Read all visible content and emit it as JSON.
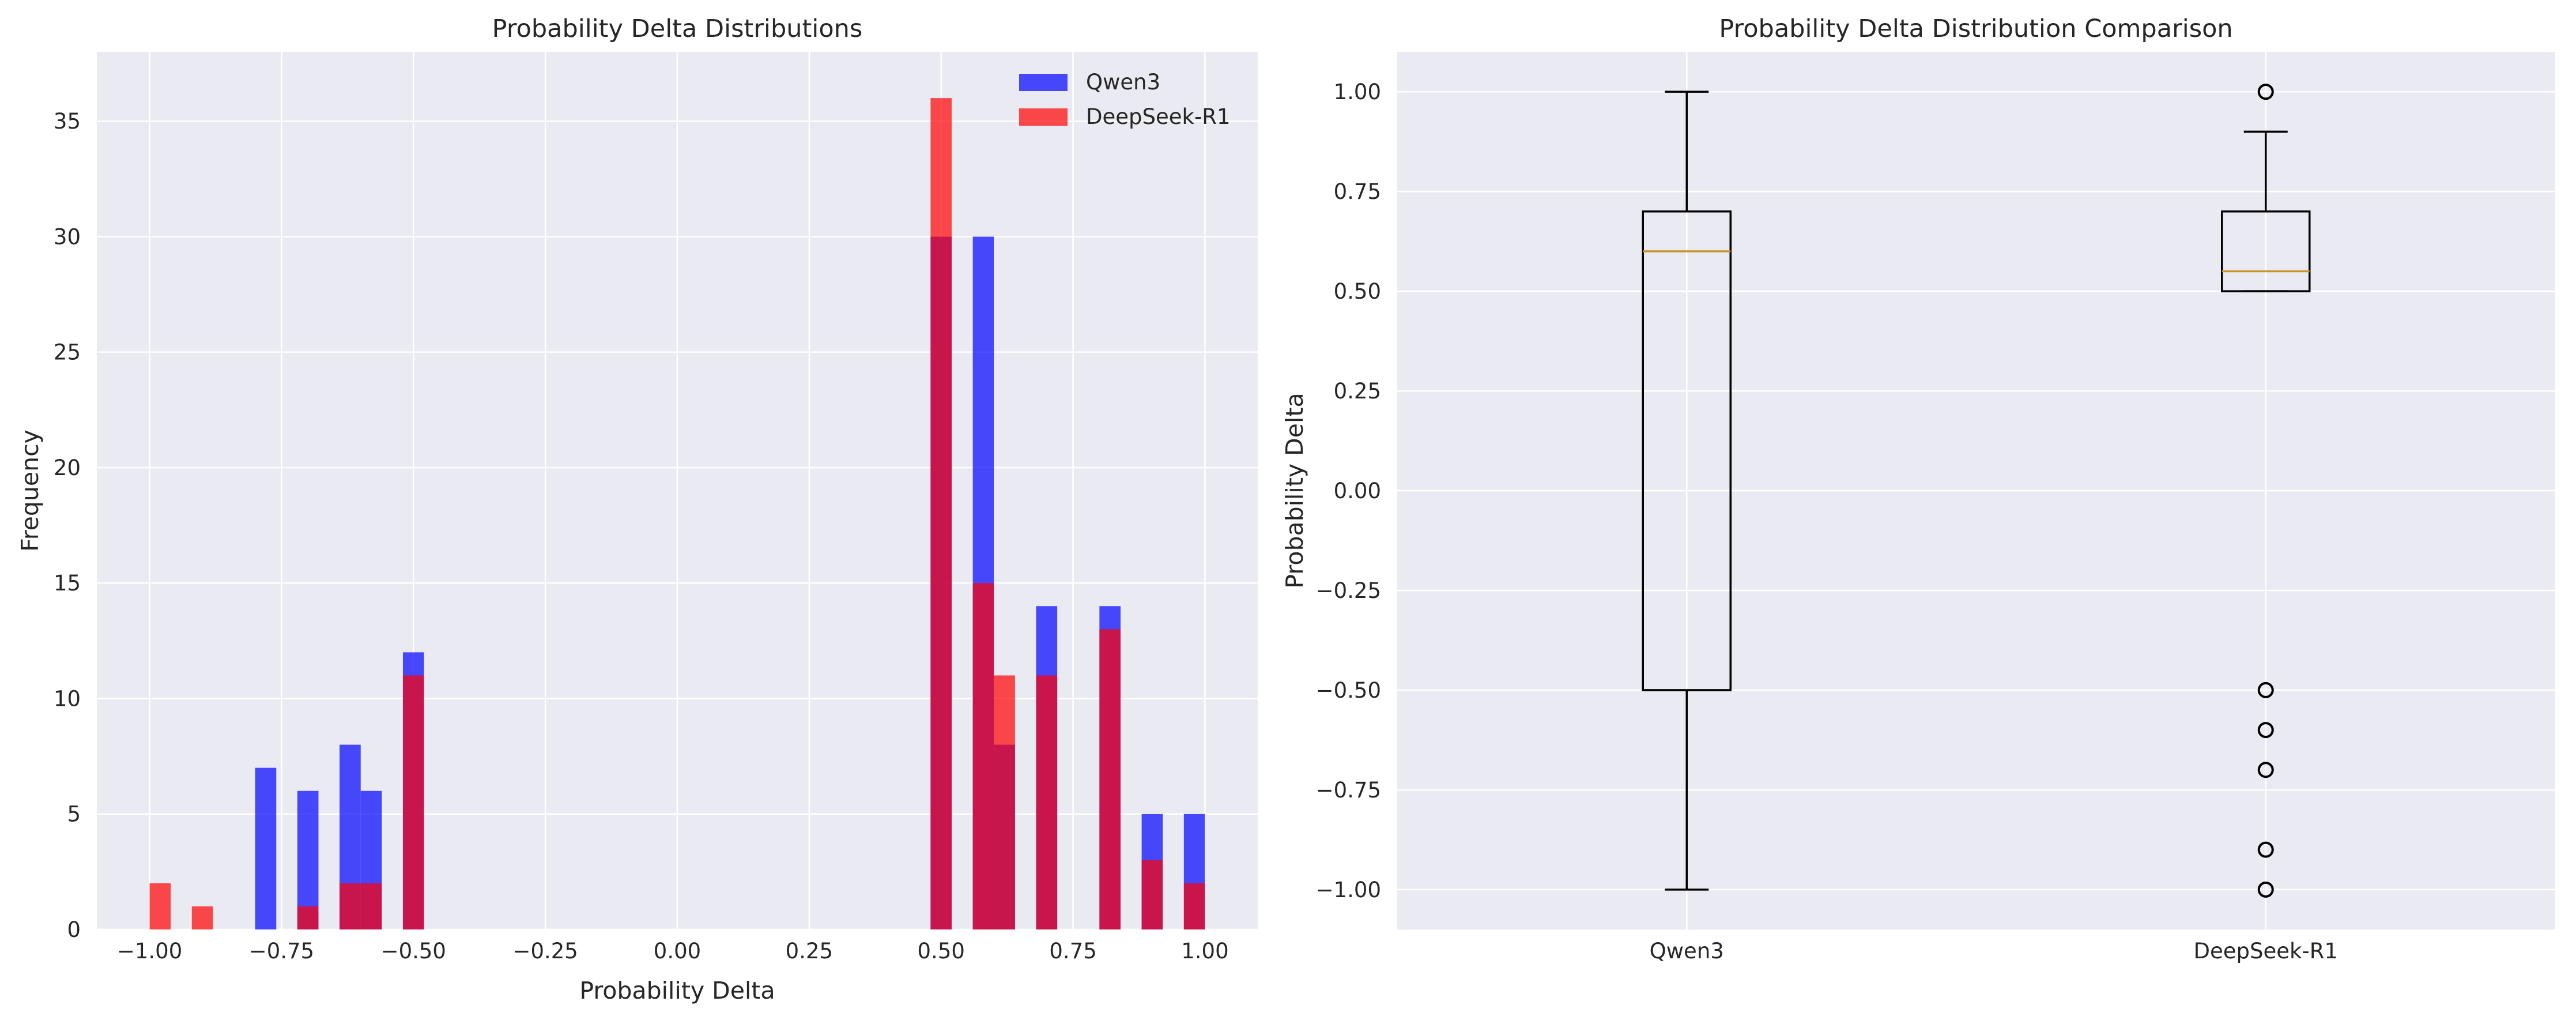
{
  "chart_data": [
    {
      "type": "histogram",
      "title": "Probability Delta Distributions",
      "xlabel": "Probability Delta",
      "ylabel": "Frequency",
      "xlim": [
        -1.1,
        1.1
      ],
      "ylim": [
        0,
        38
      ],
      "xticks": [
        -1.0,
        -0.75,
        -0.5,
        -0.25,
        0.0,
        0.25,
        0.5,
        0.75,
        1.0
      ],
      "xtick_labels": [
        "−1.00",
        "−0.75",
        "−0.50",
        "−0.25",
        "0.00",
        "0.25",
        "0.50",
        "0.75",
        "1.00"
      ],
      "yticks": [
        0,
        5,
        10,
        15,
        20,
        25,
        30,
        35
      ],
      "ytick_labels": [
        "0",
        "5",
        "10",
        "15",
        "20",
        "25",
        "30",
        "35"
      ],
      "grid": true,
      "legend_position": "top-right",
      "bin_width": 0.04,
      "series": [
        {
          "name": "Qwen3",
          "color": "#0000ff",
          "alpha": 0.7,
          "bins": [
            {
              "x0": -0.8,
              "count": 7
            },
            {
              "x0": -0.72,
              "count": 6
            },
            {
              "x0": -0.64,
              "count": 8
            },
            {
              "x0": -0.6,
              "count": 6
            },
            {
              "x0": -0.52,
              "count": 12
            },
            {
              "x0": 0.48,
              "count": 30
            },
            {
              "x0": 0.56,
              "count": 30
            },
            {
              "x0": 0.6,
              "count": 8
            },
            {
              "x0": 0.68,
              "count": 14
            },
            {
              "x0": 0.8,
              "count": 14
            },
            {
              "x0": 0.88,
              "count": 5
            },
            {
              "x0": 0.96,
              "count": 5
            }
          ]
        },
        {
          "name": "DeepSeek-R1",
          "color": "#ff0000",
          "alpha": 0.7,
          "bins": [
            {
              "x0": -1.0,
              "count": 2
            },
            {
              "x0": -0.92,
              "count": 1
            },
            {
              "x0": -0.72,
              "count": 1
            },
            {
              "x0": -0.64,
              "count": 2
            },
            {
              "x0": -0.6,
              "count": 2
            },
            {
              "x0": -0.52,
              "count": 11
            },
            {
              "x0": 0.48,
              "count": 36
            },
            {
              "x0": 0.56,
              "count": 15
            },
            {
              "x0": 0.6,
              "count": 11
            },
            {
              "x0": 0.68,
              "count": 11
            },
            {
              "x0": 0.8,
              "count": 13
            },
            {
              "x0": 0.88,
              "count": 3
            },
            {
              "x0": 0.96,
              "count": 2
            }
          ]
        }
      ]
    },
    {
      "type": "boxplot",
      "title": "Probability Delta Distribution Comparison",
      "xlabel": "",
      "ylabel": "Probability Delta",
      "ylim": [
        -1.1,
        1.1
      ],
      "yticks": [
        -1.0,
        -0.75,
        -0.5,
        -0.25,
        0.0,
        0.25,
        0.5,
        0.75,
        1.0
      ],
      "ytick_labels": [
        "−1.00",
        "−0.75",
        "−0.50",
        "−0.25",
        "0.00",
        "0.25",
        "0.50",
        "0.75",
        "1.00"
      ],
      "categories": [
        "Qwen3",
        "DeepSeek-R1"
      ],
      "grid": true,
      "median_color": "#c8962e",
      "boxes": [
        {
          "name": "Qwen3",
          "whisker_low": -1.0,
          "q1": -0.5,
          "median": 0.6,
          "q3": 0.7,
          "whisker_high": 1.0,
          "outliers": []
        },
        {
          "name": "DeepSeek-R1",
          "whisker_low": 0.5,
          "q1": 0.5,
          "median": 0.55,
          "q3": 0.7,
          "whisker_high": 0.9,
          "outliers": [
            1.0,
            -0.5,
            -0.6,
            -0.7,
            -0.9,
            -1.0
          ]
        }
      ]
    }
  ]
}
